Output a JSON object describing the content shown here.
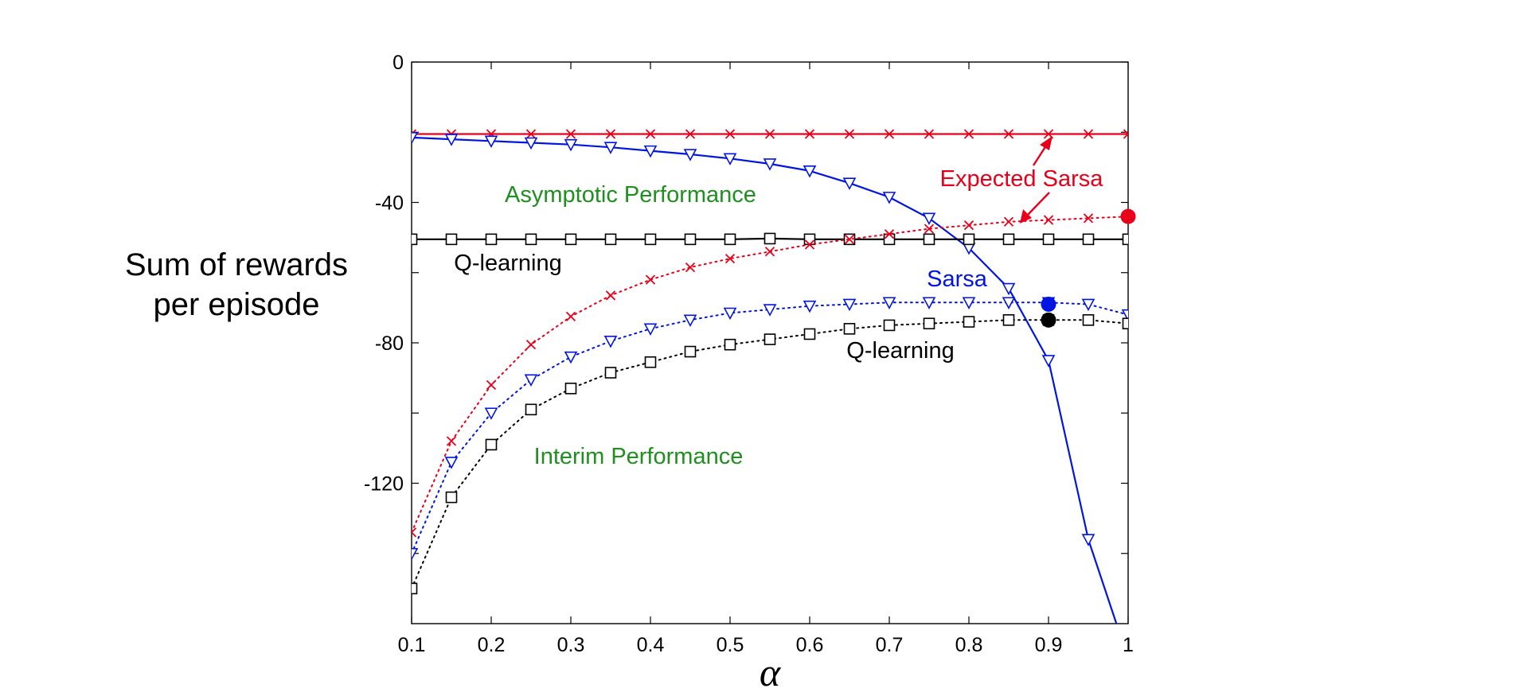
{
  "chart_data": {
    "type": "line",
    "xlabel": "α",
    "ylabel": [
      "Sum of rewards",
      "per episode"
    ],
    "xlim": [
      0.1,
      1
    ],
    "ylim": [
      -160,
      0
    ],
    "x_ticks": [
      "0.1",
      "0.2",
      "0.3",
      "0.4",
      "0.5",
      "0.6",
      "0.7",
      "0.8",
      "0.9",
      "1"
    ],
    "y_ticks": [
      "0",
      "-40",
      "-80",
      "-120"
    ],
    "y_tick_values": [
      0,
      -20,
      -40,
      -60,
      -80,
      -100,
      -120,
      -140
    ],
    "x": [
      0.1,
      0.15,
      0.2,
      0.25,
      0.3,
      0.35,
      0.4,
      0.45,
      0.5,
      0.55,
      0.6,
      0.65,
      0.7,
      0.75,
      0.8,
      0.85,
      0.9,
      0.95,
      1.0
    ],
    "grid": false,
    "series": [
      {
        "name": "Expected Sarsa",
        "group": "asymptotic",
        "color": "#e8001b",
        "line": "solid",
        "marker": "x",
        "values": [
          -20.5,
          -20.5,
          -20.5,
          -20.5,
          -20.5,
          -20.5,
          -20.5,
          -20.5,
          -20.5,
          -20.5,
          -20.5,
          -20.5,
          -20.5,
          -20.5,
          -20.5,
          -20.5,
          -20.5,
          -20.5,
          -20.5
        ]
      },
      {
        "name": "Sarsa",
        "group": "asymptotic",
        "color": "#0015e0",
        "line": "solid",
        "marker": "triangle-down",
        "values": [
          -21.5,
          -22,
          -22.5,
          -23,
          -23.5,
          -24.3,
          -25.3,
          -26.3,
          -27.5,
          -29,
          -31,
          -34.5,
          -38.5,
          -44.5,
          -53,
          -64.5,
          -85,
          -136,
          -170
        ]
      },
      {
        "name": "Q-learning",
        "group": "asymptotic",
        "color": "#000000",
        "line": "solid",
        "marker": "square",
        "values": [
          -50.5,
          -50.5,
          -50.5,
          -50.5,
          -50.5,
          -50.5,
          -50.5,
          -50.5,
          -50.5,
          -50.3,
          -50.5,
          -50.5,
          -50.5,
          -50.5,
          -50.5,
          -50.5,
          -50.5,
          -50.5,
          -50.5
        ]
      },
      {
        "name": "Expected Sarsa",
        "group": "interim",
        "color": "#e8001b",
        "line": "dotted",
        "marker": "x",
        "values": [
          -134,
          -108,
          -92,
          -80.5,
          -72.5,
          -66.5,
          -62,
          -58.5,
          -56,
          -54,
          -52,
          -50.5,
          -49,
          -47.5,
          -46.5,
          -45.5,
          -45,
          -44.5,
          -44
        ]
      },
      {
        "name": "Sarsa",
        "group": "interim",
        "color": "#0015e0",
        "line": "dotted",
        "marker": "triangle-down",
        "values": [
          -140,
          -114,
          -100,
          -90.5,
          -84,
          -79.5,
          -76,
          -73.5,
          -71.5,
          -70.5,
          -69.5,
          -69,
          -68.5,
          -68.5,
          -68.5,
          -68.5,
          -68.5,
          -69,
          -72
        ]
      },
      {
        "name": "Q-learning",
        "group": "interim",
        "color": "#000000",
        "line": "dotted",
        "marker": "square",
        "values": [
          -150,
          -124,
          -109,
          -99,
          -93,
          -88.5,
          -85.5,
          -82.5,
          -80.5,
          -79,
          -77.5,
          -76,
          -75,
          -74.5,
          -74,
          -73.5,
          -73.5,
          -73.5,
          -74.5
        ]
      }
    ],
    "highlight_points": [
      {
        "series": "Expected Sarsa",
        "x": 1.0,
        "y": -44,
        "color": "#e8001b"
      },
      {
        "series": "Sarsa",
        "x": 0.9,
        "y": -69,
        "color": "#0015e0"
      },
      {
        "series": "Q-learning",
        "x": 0.9,
        "y": -73.5,
        "color": "#000000"
      }
    ],
    "annotations": {
      "asymptotic": {
        "text": "Asymptotic Performance",
        "color": "#1f8f1f"
      },
      "interim": {
        "text": "Interim Performance",
        "color": "#1f8f1f"
      },
      "expected_sarsa": {
        "text": "Expected Sarsa",
        "color": "#e8001b"
      },
      "sarsa": {
        "text": "Sarsa",
        "color": "#0015e0"
      },
      "q_learning_asymptotic": {
        "text": "Q-learning",
        "color": "#000000"
      },
      "q_learning_interim": {
        "text": "Q-learning",
        "color": "#000000"
      }
    }
  }
}
